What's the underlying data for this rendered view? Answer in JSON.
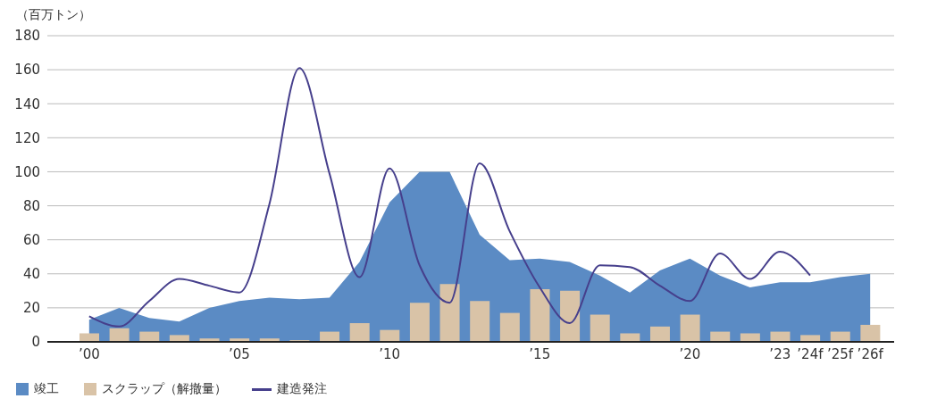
{
  "chart_data": {
    "type": "area",
    "ylabel": "（百万トン）",
    "categories": [
      "’00",
      null,
      null,
      null,
      null,
      "’05",
      null,
      null,
      null,
      null,
      "’10",
      null,
      null,
      null,
      null,
      "’15",
      null,
      null,
      null,
      null,
      "’20",
      null,
      null,
      "’23",
      "’24f",
      "’25f",
      "’26f"
    ],
    "series": [
      {
        "name": "竣工",
        "color": "#5b8bc4",
        "values": [
          13,
          20,
          14,
          12,
          20,
          24,
          26,
          25,
          26,
          47,
          82,
          100,
          100,
          63,
          48,
          49,
          47,
          39,
          29,
          42,
          49,
          39,
          32,
          35,
          35,
          38,
          40
        ]
      },
      {
        "name": "スクラップ（解撤量）",
        "type": "bar",
        "color": "#d9c3a7",
        "values": [
          5,
          8,
          6,
          4,
          2,
          2,
          2,
          1,
          6,
          11,
          7,
          23,
          34,
          24,
          17,
          31,
          30,
          16,
          5,
          9,
          16,
          6,
          5,
          6,
          4,
          6,
          10
        ]
      },
      {
        "name": "建造発注",
        "type": "line",
        "color": "#463f8c",
        "values": [
          15,
          9,
          24,
          37,
          33,
          29,
          81,
          161,
          99,
          38,
          102,
          45,
          23,
          105,
          65,
          32,
          11,
          45,
          44,
          33,
          24,
          52,
          37,
          53,
          39,
          null,
          null
        ]
      }
    ],
    "ylim": [
      0,
      180
    ],
    "yticks": [
      0,
      20,
      40,
      60,
      80,
      100,
      120,
      140,
      160,
      180
    ],
    "grid": "y",
    "legend": "bottom left"
  }
}
